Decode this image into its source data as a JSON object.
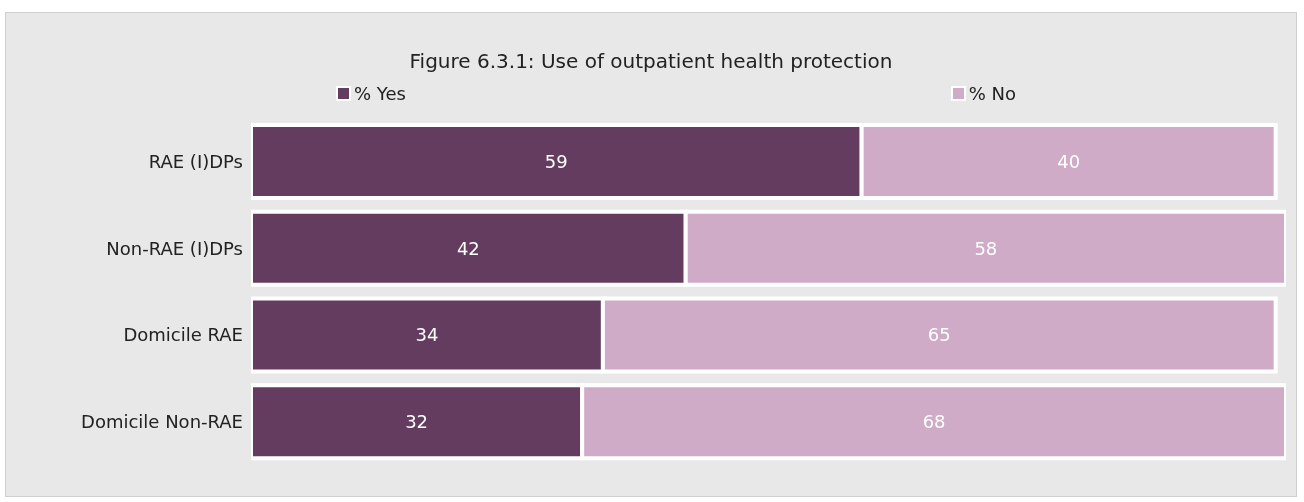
{
  "chart_data": {
    "type": "bar",
    "orientation": "horizontal",
    "stacked": true,
    "title": "Figure 6.3.1: Use of outpatient health protection",
    "categories": [
      "RAE (I)DPs",
      "Non-RAE (I)DPs",
      "Domicile RAE",
      "Domicile Non-RAE"
    ],
    "series": [
      {
        "name": "% Yes",
        "color": "#643c5f",
        "values": [
          59,
          42,
          34,
          32
        ]
      },
      {
        "name": "% No",
        "color": "#cfabc8",
        "values": [
          40,
          58,
          65,
          68
        ]
      }
    ],
    "xlim": [
      0,
      100
    ],
    "tick_labels": "y",
    "data_labels": true,
    "legend": "top"
  }
}
